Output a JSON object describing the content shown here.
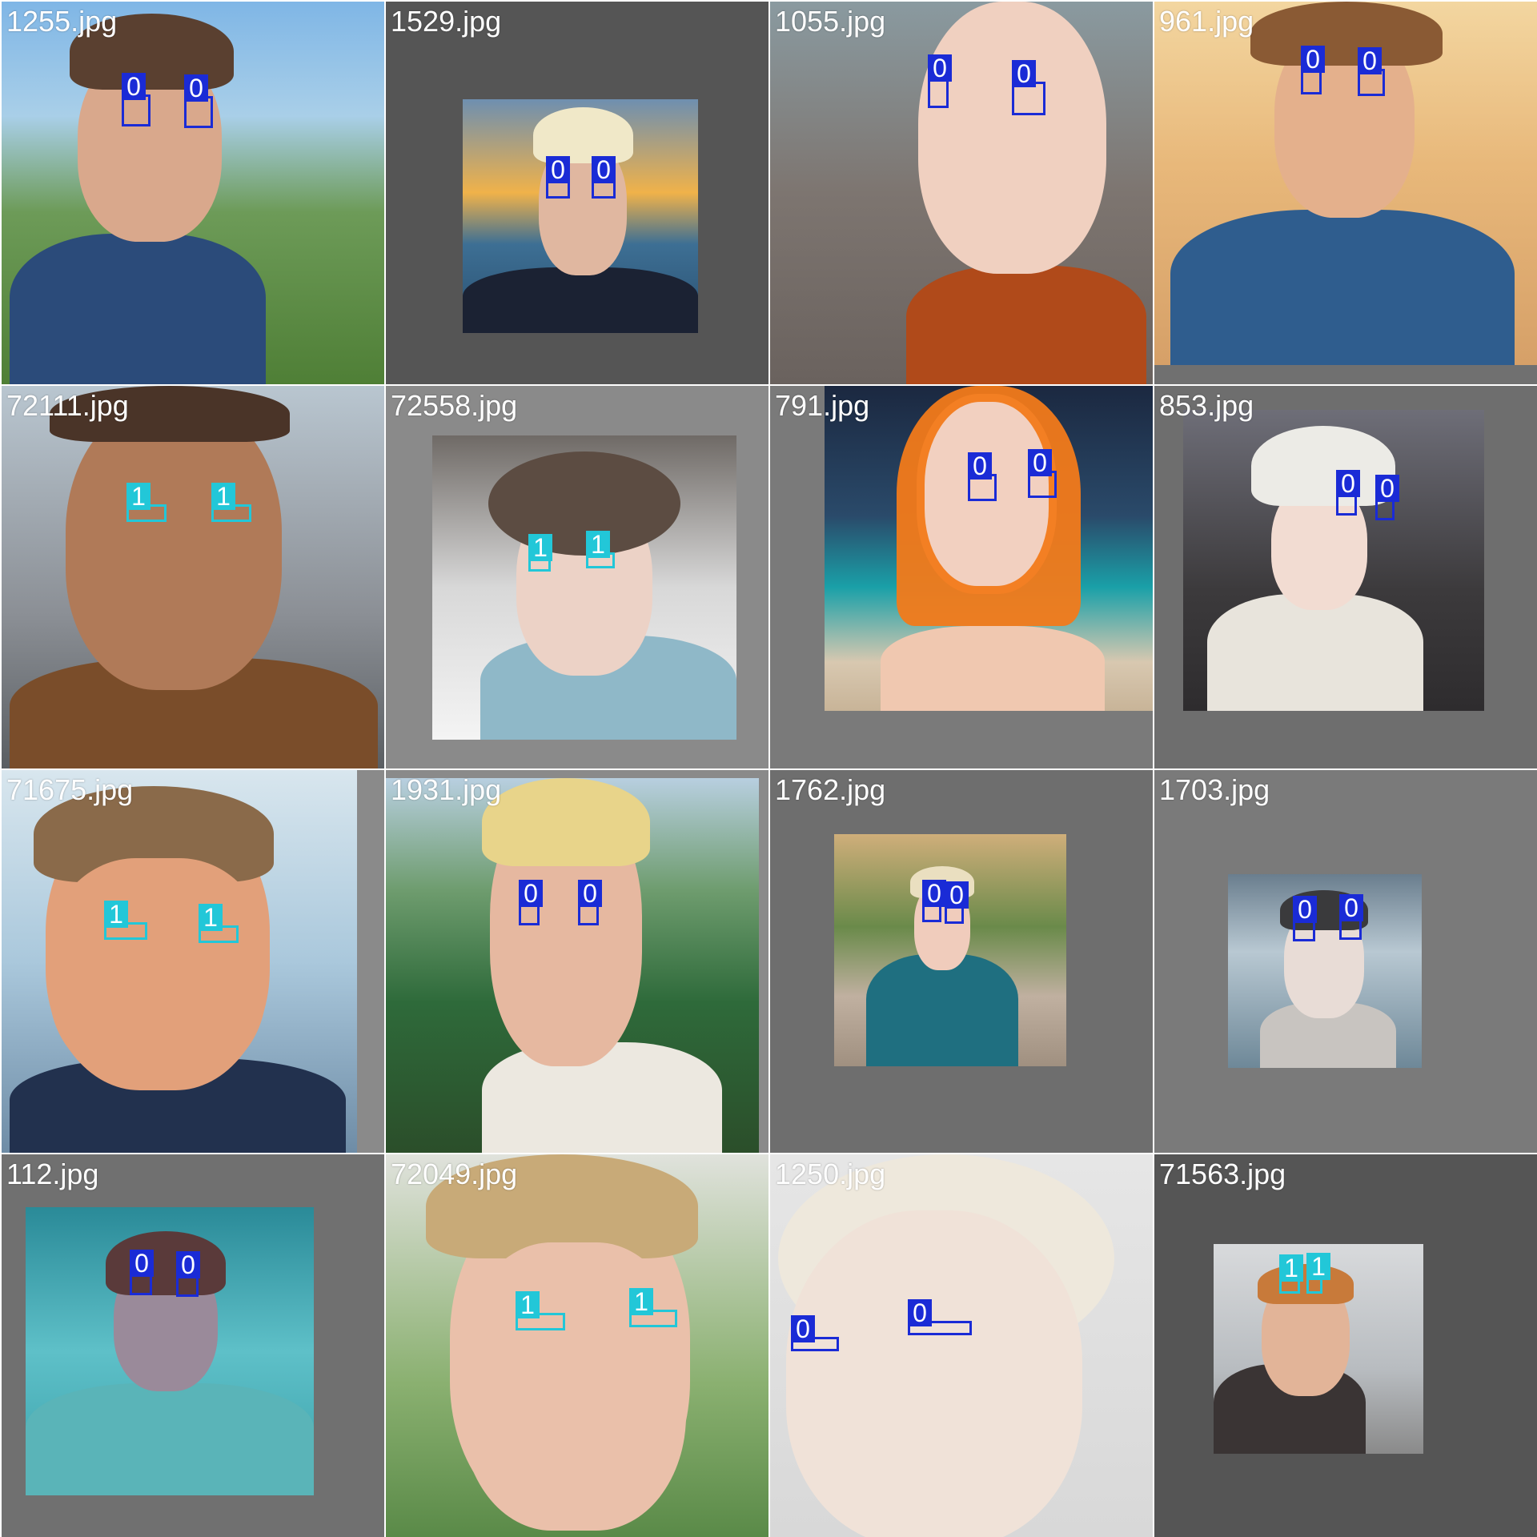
{
  "tiles": [
    {
      "file": "1255.jpg",
      "boxes": [
        {
          "label": "0",
          "cls": 0
        },
        {
          "label": "0",
          "cls": 0
        }
      ]
    },
    {
      "file": "1529.jpg",
      "boxes": [
        {
          "label": "0",
          "cls": 0
        },
        {
          "label": "0",
          "cls": 0
        }
      ]
    },
    {
      "file": "1055.jpg",
      "boxes": [
        {
          "label": "0",
          "cls": 0
        },
        {
          "label": "0",
          "cls": 0
        }
      ]
    },
    {
      "file": "961.jpg",
      "boxes": [
        {
          "label": "0",
          "cls": 0
        },
        {
          "label": "0",
          "cls": 0
        }
      ]
    },
    {
      "file": "72111.jpg",
      "boxes": [
        {
          "label": "1",
          "cls": 1
        },
        {
          "label": "1",
          "cls": 1
        }
      ]
    },
    {
      "file": "72558.jpg",
      "boxes": [
        {
          "label": "1",
          "cls": 1
        },
        {
          "label": "1",
          "cls": 1
        }
      ]
    },
    {
      "file": "791.jpg",
      "boxes": [
        {
          "label": "0",
          "cls": 0
        },
        {
          "label": "0",
          "cls": 0
        }
      ]
    },
    {
      "file": "853.jpg",
      "boxes": [
        {
          "label": "0",
          "cls": 0
        },
        {
          "label": "0",
          "cls": 0
        }
      ]
    },
    {
      "file": "71675.jpg",
      "boxes": [
        {
          "label": "1",
          "cls": 1
        },
        {
          "label": "1",
          "cls": 1
        }
      ]
    },
    {
      "file": "1931.jpg",
      "boxes": [
        {
          "label": "0",
          "cls": 0
        },
        {
          "label": "0",
          "cls": 0
        }
      ]
    },
    {
      "file": "1762.jpg",
      "boxes": [
        {
          "label": "0",
          "cls": 0
        },
        {
          "label": "0",
          "cls": 0
        }
      ]
    },
    {
      "file": "1703.jpg",
      "boxes": [
        {
          "label": "0",
          "cls": 0
        },
        {
          "label": "0",
          "cls": 0
        }
      ]
    },
    {
      "file": "112.jpg",
      "boxes": [
        {
          "label": "0",
          "cls": 0
        },
        {
          "label": "0",
          "cls": 0
        }
      ]
    },
    {
      "file": "72049.jpg",
      "boxes": [
        {
          "label": "1",
          "cls": 1
        },
        {
          "label": "1",
          "cls": 1
        }
      ]
    },
    {
      "file": "1250.jpg",
      "boxes": [
        {
          "label": "0",
          "cls": 0
        },
        {
          "label": "0",
          "cls": 0
        }
      ]
    },
    {
      "file": "71563.jpg",
      "boxes": [
        {
          "label": "1",
          "cls": 1
        },
        {
          "label": "1",
          "cls": 1
        }
      ]
    }
  ],
  "colors": {
    "class_0": "#1a2bd6",
    "class_1": "#22c7d8",
    "tile_background": "#777777"
  }
}
